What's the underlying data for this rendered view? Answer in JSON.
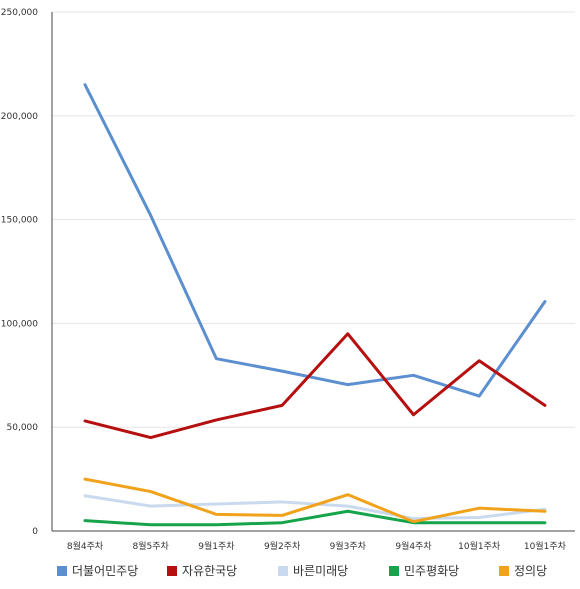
{
  "chart_data": {
    "type": "line",
    "categories": [
      "8월4주차",
      "8월5주차",
      "9월1주차",
      "9월2주차",
      "9월3주차",
      "9월4주차",
      "10월1주차",
      "10월1주차"
    ],
    "ylim": [
      0,
      250000
    ],
    "yticks": [
      "0",
      "50,000",
      "100,000",
      "150,000",
      "200,000",
      "250,000"
    ],
    "ytick_values": [
      0,
      50000,
      100000,
      150000,
      200000,
      250000
    ],
    "grid": true,
    "legend_position": "bottom",
    "series": [
      {
        "name": "더불어민주당",
        "color": "#5b8fd0",
        "values": [
          215000,
          152000,
          83000,
          77000,
          70500,
          75000,
          65000,
          110500
        ]
      },
      {
        "name": "자유한국당",
        "color": "#b50f0f",
        "values": [
          53000,
          45000,
          53500,
          60500,
          95000,
          56000,
          82000,
          60500
        ]
      },
      {
        "name": "바른미래당",
        "color": "#c9d9ee",
        "values": [
          17000,
          12000,
          13000,
          14000,
          12000,
          6000,
          6500,
          10500
        ]
      },
      {
        "name": "민주평화당",
        "color": "#15a44a",
        "values": [
          5000,
          3000,
          3000,
          4000,
          9500,
          4000,
          4000,
          4000
        ]
      },
      {
        "name": "정의당",
        "color": "#f0a21a",
        "values": [
          25000,
          19000,
          8000,
          7500,
          17500,
          4500,
          11000,
          9500
        ]
      }
    ]
  }
}
